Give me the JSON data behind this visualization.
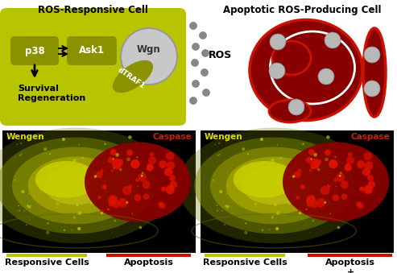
{
  "title_left": "ROS-Responsive Cell",
  "title_right": "Apoptotic ROS-Producing Cell",
  "label_p38": "p38",
  "label_ask1": "Ask1",
  "label_wgn": "Wgn",
  "label_dtraf": "dTRAF1",
  "label_survival": "Survival\nRegeneration",
  "label_ros": "ROS",
  "label_wengen1": "Wengen",
  "label_caspase1": "Caspase",
  "label_wengen2": "Wengen",
  "label_caspase2": "Caspase",
  "label_bottom_left1": "Responsive Cells",
  "label_bottom_left2": "Apoptosis",
  "label_bottom_right1": "Responsive Cells",
  "label_bottom_right2": "Apoptosis\n+\nROS Scavengers",
  "bg_color": "#ffffff",
  "cell_green_color": "#b8c400",
  "cell_green_dark": "#8a9200",
  "cell_red_color": "#cc1100",
  "cell_dark_red": "#880000",
  "gray_dot_color": "#888888",
  "gray_dot_light": "#aaaaaa",
  "wgn_circle_color": "#c8c8c8",
  "wgn_circle_edge": "#999999",
  "photo_bg": "#000000",
  "bar_green": "#b8c400",
  "bar_red": "#cc1100",
  "white": "#ffffff"
}
